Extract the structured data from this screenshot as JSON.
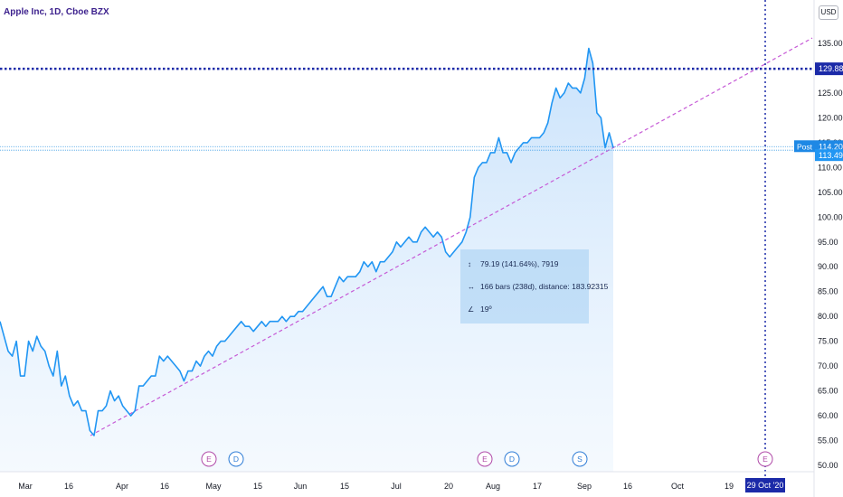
{
  "legend": {
    "symbol": "Apple Inc, 1D, Cboe BZX"
  },
  "currency_label": "USD",
  "price_axis": {
    "ticks": [
      "135.00",
      "130.00",
      "125.00",
      "120.00",
      "115.00",
      "110.00",
      "105.00",
      "100.00",
      "95.00",
      "90.00",
      "85.00",
      "80.00",
      "75.00",
      "70.00",
      "65.00",
      "60.00",
      "55.00",
      "50.00"
    ],
    "crosshair_label": "129.88",
    "post_label": "Post",
    "post_value": "114.20",
    "last_value": "113.49"
  },
  "time_axis": {
    "labels": [
      "Mar",
      "16",
      "Apr",
      "16",
      "May",
      "15",
      "Jun",
      "15",
      "Jul",
      "20",
      "Aug",
      "17",
      "Sep",
      "16",
      "Oct",
      "19"
    ],
    "crosshair_date": "29 Oct '20"
  },
  "events": [
    {
      "letter": "E",
      "kind": "earnings",
      "color": "#b04aa8"
    },
    {
      "letter": "D",
      "kind": "dividend",
      "color": "#2f7dd6"
    },
    {
      "letter": "E",
      "kind": "earnings",
      "color": "#b04aa8"
    },
    {
      "letter": "D",
      "kind": "dividend",
      "color": "#2f7dd6"
    },
    {
      "letter": "S",
      "kind": "split",
      "color": "#2f7dd6"
    },
    {
      "letter": "E",
      "kind": "earnings",
      "color": "#b04aa8"
    }
  ],
  "measure": {
    "price_range": "79.19 (141.64%), 7919",
    "bars_range": "166 bars (238d), distance: 183.92315",
    "angle": "19º"
  },
  "colors": {
    "line": "#2196f3",
    "crosshair": "#1b2aa8",
    "trend": "#c65ad6",
    "post": "#1e88e5"
  },
  "chart_data": {
    "type": "area",
    "series": [
      {
        "values": [
          79,
          76,
          73,
          72,
          75,
          68,
          68,
          75,
          73,
          76,
          74,
          73,
          70,
          68,
          73,
          66,
          68,
          64,
          62,
          63,
          61,
          61,
          57,
          56,
          61,
          61,
          62,
          65,
          63,
          64,
          62,
          61,
          60,
          61,
          66,
          66,
          67,
          68,
          68,
          72,
          71,
          72,
          71,
          70,
          69,
          67,
          69,
          69,
          71,
          70,
          72,
          73,
          72,
          74,
          75,
          75,
          76,
          77,
          78,
          79,
          78,
          78,
          77,
          78,
          79,
          78,
          79,
          79,
          79,
          80,
          79,
          80,
          80,
          81,
          81,
          82,
          83,
          84,
          85,
          86,
          84,
          84,
          86,
          88,
          87,
          88,
          88,
          88,
          89,
          91,
          90,
          91,
          89,
          91,
          91,
          92,
          93,
          95,
          94,
          95,
          96,
          95,
          95,
          97,
          98,
          97,
          96,
          97,
          96,
          93,
          92,
          93,
          94,
          95,
          97,
          100,
          108,
          110,
          111,
          111,
          113,
          113,
          116,
          113,
          113,
          111,
          113,
          114,
          115,
          115,
          116,
          116,
          116,
          117,
          119,
          123,
          126,
          124,
          125,
          127,
          126,
          126,
          125,
          128,
          134,
          131,
          121,
          120,
          114,
          117,
          114
        ]
      }
    ],
    "ylim": [
      49,
      138
    ],
    "price_axis_ticks": [
      135,
      130,
      125,
      120,
      115,
      110,
      105,
      100,
      95,
      90,
      85,
      80,
      75,
      70,
      65,
      60,
      55,
      50
    ],
    "crosshair_price": 129.88,
    "crosshair_date": "29 Oct '20",
    "post_price": 114.2,
    "last_price": 113.49,
    "trend_line_from": {
      "date_label": "Mar 23",
      "price": 56
    },
    "trend_line_to": {
      "date_label": "Sep 11",
      "price": 114
    },
    "grid": false
  }
}
